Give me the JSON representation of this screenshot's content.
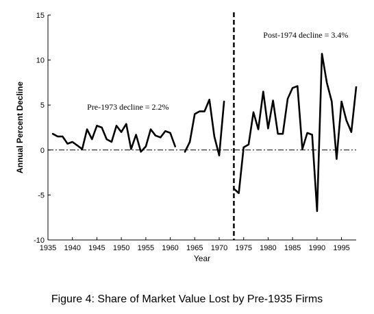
{
  "caption": "Figure 4: Share of Market Value Lost by Pre-1935 Firms",
  "chart_data": {
    "type": "line",
    "xlabel": "Year",
    "ylabel": "Annual Percent Decline",
    "xlim": [
      1935,
      1998
    ],
    "ylim": [
      -10,
      15
    ],
    "xticks": [
      1935,
      1940,
      1945,
      1950,
      1955,
      1960,
      1965,
      1970,
      1975,
      1980,
      1985,
      1990,
      1995
    ],
    "yticks": [
      -10,
      -5,
      0,
      5,
      10,
      15
    ],
    "zero_line": {
      "y": 0,
      "style": "dash-dot"
    },
    "vertical_line": {
      "x": 1973,
      "style": "dashed"
    },
    "annotations": [
      {
        "text": "Pre-1973 decline = 2.2%",
        "x": 1943,
        "y": 4.5
      },
      {
        "text": "Post-1974 decline = 3.4%",
        "x": 1979,
        "y": 12.5
      }
    ],
    "segments": [
      {
        "x": [
          1936,
          1937,
          1938,
          1939,
          1940,
          1941,
          1942,
          1943,
          1944,
          1945,
          1946,
          1947,
          1948,
          1949,
          1950,
          1951,
          1952,
          1953,
          1954,
          1955,
          1956,
          1957,
          1958,
          1959,
          1960,
          1961
        ],
        "y": [
          1.8,
          1.5,
          1.5,
          0.7,
          0.9,
          0.5,
          0.1,
          2.3,
          1.2,
          2.7,
          2.5,
          1.2,
          0.9,
          2.7,
          2.0,
          2.9,
          0.1,
          1.7,
          -0.2,
          0.4,
          2.3,
          1.6,
          1.4,
          2.1,
          1.9,
          0.4
        ]
      },
      {
        "x": [
          1963,
          1964,
          1965,
          1966,
          1967,
          1968,
          1969,
          1970,
          1971
        ],
        "y": [
          -0.2,
          0.9,
          4.0,
          4.3,
          4.3,
          5.6,
          1.5,
          -0.6,
          5.4
        ]
      },
      {
        "x": [
          1973,
          1974,
          1975,
          1976,
          1977,
          1978,
          1979,
          1980,
          1981,
          1982,
          1983,
          1984,
          1985,
          1986,
          1987,
          1988,
          1989,
          1990,
          1991,
          1992,
          1993,
          1994,
          1995,
          1996,
          1997,
          1998
        ],
        "y": [
          -4.3,
          -4.8,
          0.3,
          0.6,
          4.2,
          2.3,
          6.5,
          2.4,
          5.5,
          1.8,
          1.8,
          5.7,
          6.9,
          7.1,
          0.1,
          1.9,
          1.7,
          -6.8,
          10.7,
          7.5,
          5.4,
          -1.0,
          5.4,
          3.3,
          2.0,
          7.0
        ]
      }
    ]
  }
}
